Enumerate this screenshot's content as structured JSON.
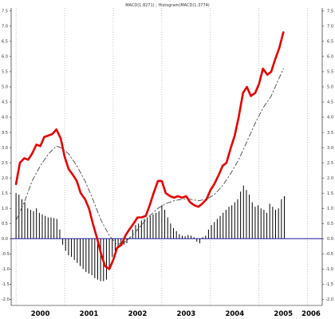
{
  "chart_data": {
    "type": "line",
    "title": "MACD(1.8271) ; Histogram(MACD(1.3774)",
    "xlabel": "",
    "ylabel": "",
    "xlim": [
      1999.9,
      2006.3
    ],
    "ylim": [
      -2.2,
      7.6
    ],
    "y_ticks": [
      "7.5",
      "7.0",
      "6.5",
      "6.0",
      "5.5",
      "5.0",
      "4.5",
      "4.0",
      "3.5",
      "3.0",
      "2.5",
      "2.0",
      "1.5",
      "1.0",
      "0.5",
      "0.0",
      "-0.5",
      "-1.0",
      "-1.5",
      "-2.0"
    ],
    "x_ticks": [
      "2000",
      "2001",
      "2002",
      "2003",
      "2004",
      "2005",
      "2006"
    ],
    "grid": "vertical dotted at year boundaries",
    "zero_line": 0.0,
    "colors": {
      "macd": "#e60000",
      "signal": "#444444",
      "histogram": "#000000",
      "zero_line": "#1a1aa0",
      "grid": "#888888"
    },
    "series": [
      {
        "kind": "line",
        "style": "solid-thick",
        "color": "#e60000",
        "x": [
          2000.0,
          2000.08,
          2000.17,
          2000.25,
          2000.33,
          2000.42,
          2000.5,
          2000.58,
          2000.67,
          2000.75,
          2000.83,
          2000.92,
          2001.0,
          2001.08,
          2001.17,
          2001.25,
          2001.33,
          2001.42,
          2001.5,
          2001.58,
          2001.67,
          2001.75,
          2001.83,
          2001.92,
          2002.0,
          2002.08,
          2002.17,
          2002.25,
          2002.33,
          2002.42,
          2002.5,
          2002.58,
          2002.67,
          2002.75,
          2002.83,
          2002.92,
          2003.0,
          2003.08,
          2003.17,
          2003.25,
          2003.33,
          2003.42,
          2003.5,
          2003.58,
          2003.67,
          2003.75,
          2003.83,
          2003.92,
          2004.0,
          2004.08,
          2004.17,
          2004.25,
          2004.33,
          2004.42,
          2004.5,
          2004.58,
          2004.67,
          2004.75,
          2004.83,
          2004.92,
          2005.0,
          2005.08,
          2005.17,
          2005.25,
          2005.33,
          2005.42,
          2005.5
        ],
        "values": [
          1.8,
          2.5,
          2.65,
          2.6,
          2.8,
          3.1,
          3.05,
          3.35,
          3.4,
          3.45,
          3.6,
          3.3,
          2.7,
          2.3,
          2.1,
          1.9,
          1.5,
          1.3,
          1.0,
          0.5,
          0.0,
          -0.5,
          -0.9,
          -1.0,
          -0.7,
          -0.3,
          -0.2,
          0.1,
          0.3,
          0.5,
          0.7,
          0.7,
          0.75,
          1.1,
          1.5,
          1.9,
          1.9,
          1.5,
          1.4,
          1.35,
          1.4,
          1.35,
          1.4,
          1.2,
          1.1,
          1.05,
          1.15,
          1.3,
          1.6,
          1.8,
          2.1,
          2.4,
          2.5,
          3.0,
          3.4,
          4.0,
          4.8,
          5.0,
          4.7,
          4.8,
          5.1,
          5.6,
          5.4,
          5.5,
          5.9,
          6.3,
          6.8
        ]
      },
      {
        "kind": "line",
        "style": "dashed",
        "color": "#444444",
        "x": [
          2000.0,
          2000.17,
          2000.33,
          2000.5,
          2000.67,
          2000.83,
          2000.92,
          2001.08,
          2001.25,
          2001.42,
          2001.58,
          2001.75,
          2001.92,
          2002.08,
          2002.25,
          2002.42,
          2002.58,
          2002.75,
          2002.92,
          2003.08,
          2003.25,
          2003.42,
          2003.58,
          2003.75,
          2003.92,
          2004.08,
          2004.25,
          2004.42,
          2004.58,
          2004.75,
          2004.92,
          2005.08,
          2005.25,
          2005.5
        ],
        "values": [
          0.6,
          1.2,
          1.9,
          2.4,
          2.8,
          3.05,
          3.0,
          2.8,
          2.4,
          1.9,
          1.3,
          0.6,
          0.1,
          -0.2,
          -0.1,
          0.15,
          0.45,
          0.75,
          1.0,
          1.15,
          1.25,
          1.3,
          1.3,
          1.25,
          1.3,
          1.45,
          1.75,
          2.15,
          2.6,
          3.2,
          3.8,
          4.3,
          4.7,
          5.6
        ]
      },
      {
        "kind": "histogram",
        "color": "#000000",
        "x": [
          2000.0,
          2000.06,
          2000.12,
          2000.18,
          2000.24,
          2000.3,
          2000.36,
          2000.42,
          2000.48,
          2000.54,
          2000.6,
          2000.66,
          2000.72,
          2000.78,
          2000.84,
          2000.9,
          2000.96,
          2001.02,
          2001.08,
          2001.14,
          2001.2,
          2001.26,
          2001.32,
          2001.38,
          2001.44,
          2001.5,
          2001.56,
          2001.62,
          2001.68,
          2001.74,
          2001.8,
          2001.86,
          2001.92,
          2001.98,
          2002.04,
          2002.1,
          2002.16,
          2002.22,
          2002.28,
          2002.34,
          2002.4,
          2002.46,
          2002.52,
          2002.58,
          2002.64,
          2002.7,
          2002.76,
          2002.82,
          2002.88,
          2002.94,
          2003.0,
          2003.06,
          2003.12,
          2003.18,
          2003.24,
          2003.3,
          2003.36,
          2003.42,
          2003.48,
          2003.54,
          2003.6,
          2003.66,
          2003.72,
          2003.78,
          2003.84,
          2003.9,
          2003.96,
          2004.02,
          2004.08,
          2004.14,
          2004.2,
          2004.26,
          2004.32,
          2004.38,
          2004.44,
          2004.5,
          2004.56,
          2004.62,
          2004.68,
          2004.74,
          2004.8,
          2004.86,
          2004.92,
          2004.98,
          2005.04,
          2005.1,
          2005.16,
          2005.22,
          2005.28,
          2005.34,
          2005.4,
          2005.46,
          2005.52
        ],
        "values": [
          1.5,
          1.45,
          1.3,
          1.2,
          1.0,
          0.95,
          0.9,
          1.0,
          0.85,
          0.8,
          0.75,
          0.7,
          0.7,
          0.68,
          0.65,
          0.3,
          -0.2,
          -0.4,
          -0.55,
          -0.6,
          -0.7,
          -0.8,
          -0.9,
          -1.0,
          -1.1,
          -1.15,
          -1.2,
          -1.3,
          -1.35,
          -1.4,
          -1.4,
          -1.35,
          -1.0,
          -0.6,
          -0.4,
          -0.3,
          -0.25,
          -0.2,
          -0.15,
          0.05,
          0.3,
          0.45,
          0.5,
          0.6,
          0.65,
          0.7,
          0.75,
          0.8,
          0.85,
          0.9,
          1.1,
          0.95,
          0.7,
          0.5,
          0.35,
          0.25,
          0.15,
          0.1,
          0.08,
          0.12,
          0.1,
          0.05,
          -0.1,
          -0.15,
          0.05,
          0.1,
          0.3,
          0.45,
          0.55,
          0.65,
          0.75,
          0.85,
          0.95,
          1.05,
          1.1,
          1.2,
          1.3,
          1.55,
          1.75,
          1.6,
          1.45,
          1.2,
          1.05,
          1.1,
          1.0,
          0.95,
          0.85,
          1.15,
          1.05,
          0.95,
          1.0,
          1.3,
          1.4
        ]
      }
    ]
  }
}
